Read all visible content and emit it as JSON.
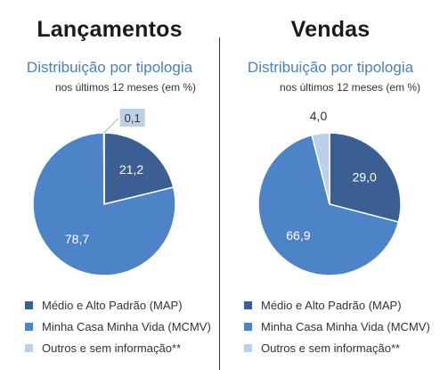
{
  "colors": {
    "map": "#3b5f92",
    "mcmv": "#4d84c8",
    "outros": "#bcd0ea",
    "title": "#1b1b1b",
    "subtitle": "#4a7fc1"
  },
  "legend": [
    {
      "label": "Médio e Alto Padrão (MAP)",
      "color": "#3b5f92"
    },
    {
      "label": "Minha Casa Minha Vida (MCMV)",
      "color": "#4d84c8"
    },
    {
      "label": "Outros e sem informação**",
      "color": "#bcd0ea"
    }
  ],
  "chart_data": [
    {
      "type": "pie",
      "title": "Lançamentos",
      "subtitle": "Distribuição por tipologia",
      "unit_note": "nos últimos 12 meses (em %)",
      "slices": [
        {
          "label": "Médio e Alto Padrão (MAP)",
          "value": 21.2,
          "display": "21,2",
          "color": "#3b5f92"
        },
        {
          "label": "Minha Casa Minha Vida (MCMV)",
          "value": 78.7,
          "display": "78,7",
          "color": "#4d84c8"
        },
        {
          "label": "Outros e sem informação**",
          "value": 0.1,
          "display": "0,1",
          "color": "#bcd0ea"
        }
      ]
    },
    {
      "type": "pie",
      "title": "Vendas",
      "subtitle": "Distribuição por tipologia",
      "unit_note": "nos últimos 12 meses (em %)",
      "slices": [
        {
          "label": "Médio e Alto Padrão (MAP)",
          "value": 29.0,
          "display": "29,0",
          "color": "#3b5f92"
        },
        {
          "label": "Minha Casa Minha Vida (MCMV)",
          "value": 66.9,
          "display": "66,9",
          "color": "#4d84c8"
        },
        {
          "label": "Outros e sem informação**",
          "value": 4.0,
          "display": "4,0",
          "color": "#bcd0ea"
        }
      ]
    }
  ]
}
